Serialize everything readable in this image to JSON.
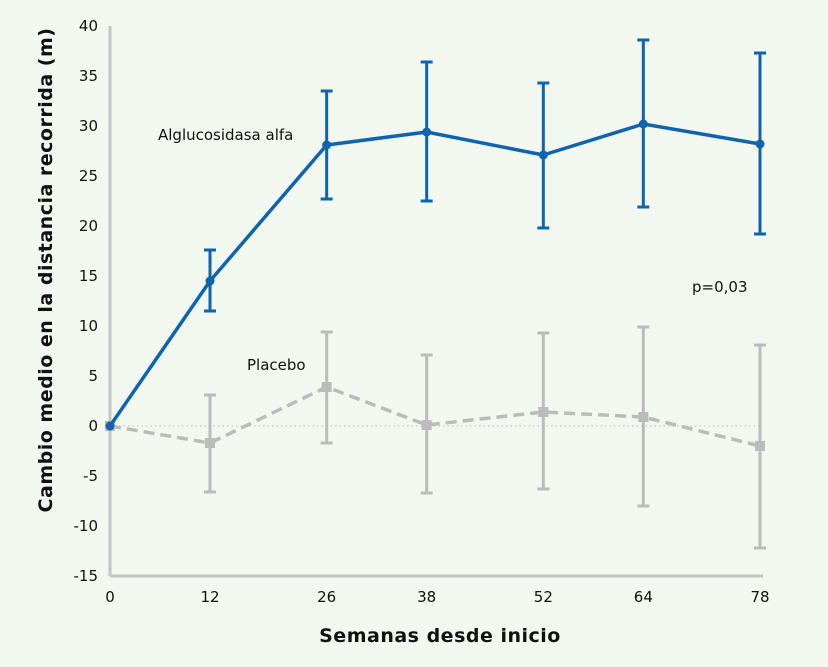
{
  "chart_data": {
    "type": "line",
    "title": "",
    "xlabel": "Semanas desde inicio",
    "ylabel": "Cambio medio en la distancia recorrida (m)",
    "x": [
      0,
      12,
      26,
      38,
      52,
      64,
      78
    ],
    "xticks": [
      "0",
      "12",
      "26",
      "38",
      "52",
      "64",
      "78"
    ],
    "ylim": [
      -15,
      40
    ],
    "yticks": [
      "-15",
      "-10",
      "-5",
      "0",
      "5",
      "10",
      "15",
      "20",
      "25",
      "30",
      "35",
      "40"
    ],
    "grid": false,
    "zero_reference_line": true,
    "series": [
      {
        "name": "Alglucosidasa alfa",
        "color": "#0e64ae",
        "style": "solid",
        "marker": "circle",
        "values": [
          0,
          14.5,
          28.1,
          29.4,
          27.1,
          30.2,
          28.2
        ],
        "error_upper": [
          null,
          17.6,
          33.5,
          36.4,
          34.3,
          38.6,
          37.3
        ],
        "error_lower": [
          null,
          11.5,
          22.7,
          22.5,
          19.8,
          21.9,
          19.2
        ]
      },
      {
        "name": "Placebo",
        "color": "#bbbbbb",
        "style": "dashed",
        "marker": "square",
        "values": [
          0,
          -1.7,
          3.9,
          0.1,
          1.4,
          0.9,
          -2.0
        ],
        "error_upper": [
          null,
          3.1,
          9.4,
          7.1,
          9.3,
          9.9,
          8.1
        ],
        "error_lower": [
          null,
          -6.6,
          -1.7,
          -6.7,
          -6.3,
          -8.0,
          -12.2
        ]
      }
    ],
    "annotations": [
      "p=0,03"
    ]
  }
}
